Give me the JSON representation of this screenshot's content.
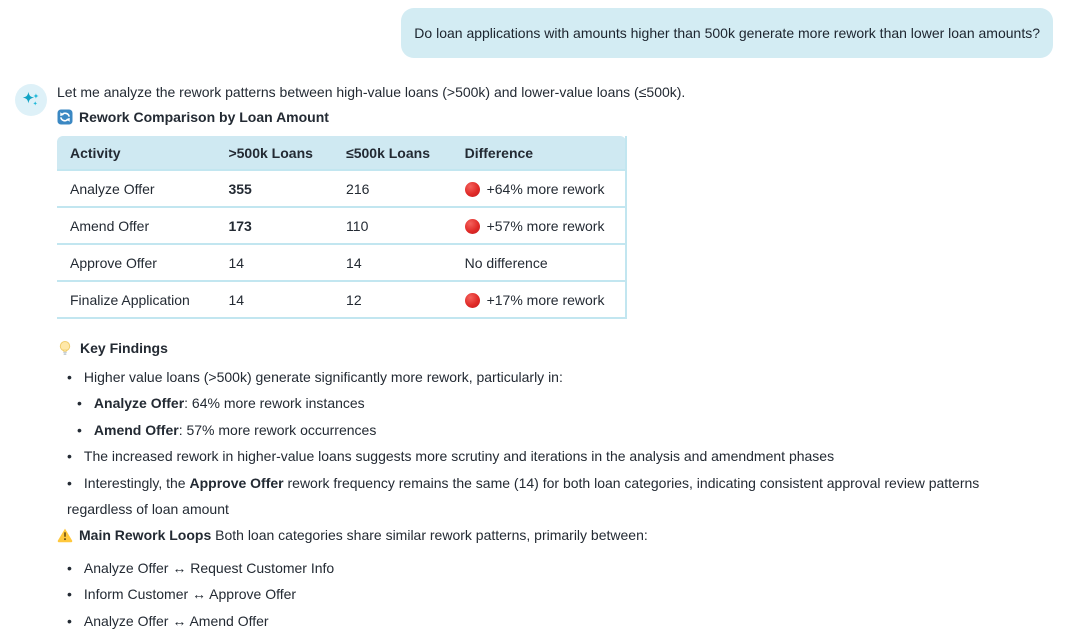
{
  "user_message": {
    "text": "Do loan applications with amounts higher than 500k generate more rework than lower loan amounts?"
  },
  "assistant": {
    "avatar_icon": "sparkles-icon",
    "intro": "Let me analyze the rework patterns between high-value loans (>500k) and lower-value loans (≤500k).",
    "table_heading": {
      "icon": "counterclockwise-arrows-icon",
      "text": "Rework Comparison by Loan Amount"
    },
    "table": {
      "headers": [
        "Activity",
        ">500k Loans",
        "≤500k Loans",
        "Difference"
      ],
      "rows": [
        {
          "activity": "Analyze Offer",
          "gt500k": "355",
          "gt500k_bold": true,
          "le500k": "216",
          "difference": "+64% more rework",
          "flag_icon": "red-circle-icon"
        },
        {
          "activity": "Amend Offer",
          "gt500k": "173",
          "gt500k_bold": true,
          "le500k": "110",
          "difference": "+57% more rework",
          "flag_icon": "red-circle-icon"
        },
        {
          "activity": "Approve Offer",
          "gt500k": "14",
          "gt500k_bold": false,
          "le500k": "14",
          "difference": "No difference",
          "flag_icon": null
        },
        {
          "activity": "Finalize Application",
          "gt500k": "14",
          "gt500k_bold": false,
          "le500k": "12",
          "difference": "+17% more rework",
          "flag_icon": "red-circle-icon"
        }
      ]
    },
    "key_findings": {
      "icon": "light-bulb-icon",
      "heading": "Key Findings",
      "items": [
        {
          "level": 1,
          "segments": [
            {
              "t": "Higher value loans (>500k) generate significantly more rework, particularly in:"
            }
          ]
        },
        {
          "level": 2,
          "segments": [
            {
              "t": "Analyze Offer",
              "b": true
            },
            {
              "t": ": 64% more rework instances"
            }
          ]
        },
        {
          "level": 2,
          "segments": [
            {
              "t": "Amend Offer",
              "b": true
            },
            {
              "t": ": 57% more rework occurrences"
            }
          ]
        },
        {
          "level": 1,
          "segments": [
            {
              "t": "The increased rework in higher-value loans suggests more scrutiny and iterations in the analysis and amendment phases"
            }
          ]
        },
        {
          "level": 1,
          "segments": [
            {
              "t": "Interestingly, the "
            },
            {
              "t": "Approve Offer",
              "b": true
            },
            {
              "t": " rework frequency remains the same (14) for both loan categories, indicating consistent approval review patterns regardless of loan amount"
            }
          ]
        }
      ]
    },
    "rework_loops": {
      "icon": "warning-icon",
      "heading_segments": [
        {
          "t": "Main Rework Loops",
          "b": true
        },
        {
          "t": " Both loan categories share similar rework patterns, primarily between:"
        }
      ],
      "items": [
        "Analyze Offer ↔ Request Customer Info",
        "Inform Customer ↔ Approve Offer",
        "Analyze Offer ↔ Amend Offer"
      ]
    }
  },
  "colors": {
    "user_bubble_bg": "#d3ecf3",
    "table_header_bg": "#cfe9f2",
    "table_divider": "#c2e6f0",
    "red_flag": "#d21f24",
    "avatar_bg": "#def1f8",
    "sparkle_teal": "#12a3c4",
    "refresh_blue": "#3b88c3",
    "bulb_yellow": "#ffdf8e",
    "warning_yellow": "#ffc83d",
    "text": "#232a33"
  }
}
